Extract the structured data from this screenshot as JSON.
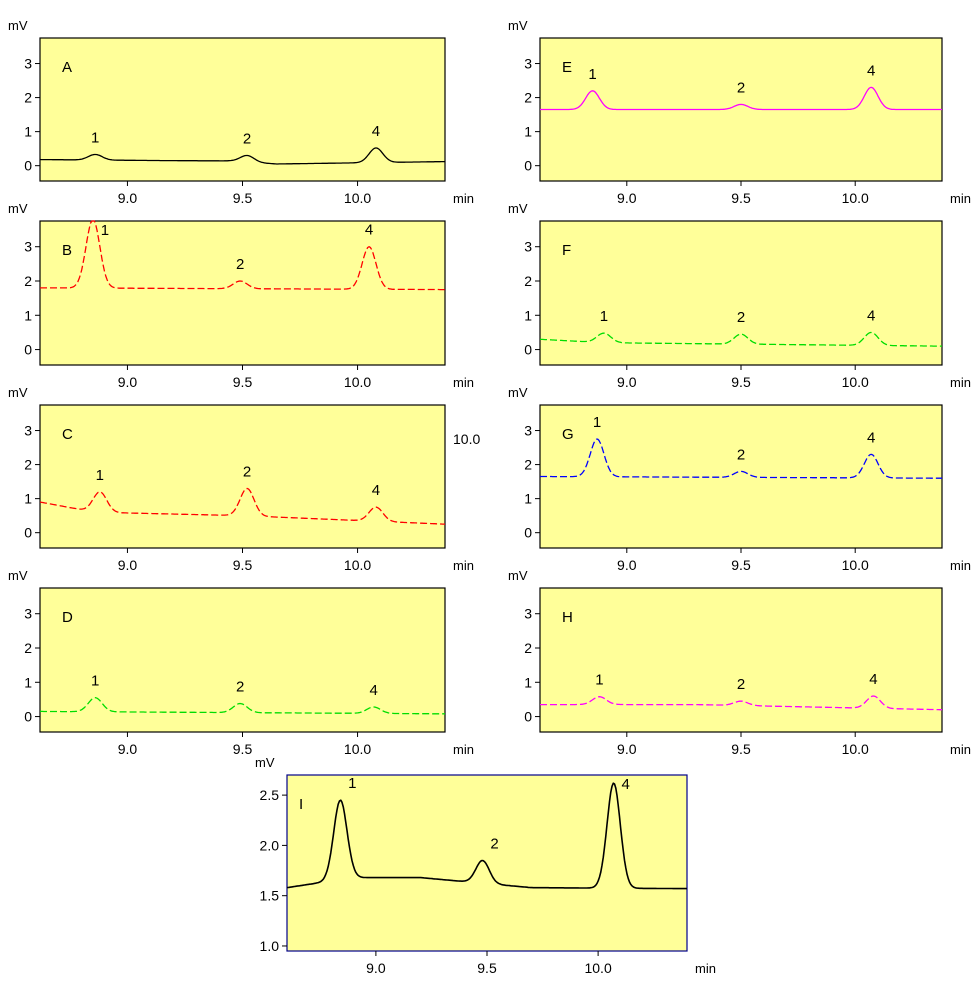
{
  "figure": {
    "background": "#ffffff",
    "panel_fill": "#ffff99"
  },
  "stray_labels": {
    "c_panel_right": "10.0"
  },
  "chart_data": [
    {
      "id": "A",
      "type": "line",
      "letter": "A",
      "ylabel": "mV",
      "xlabel": "min",
      "line_color": "#000000",
      "line_style": "solid",
      "border_color": "#000000",
      "xlim": [
        8.62,
        10.38
      ],
      "ylim": [
        -0.45,
        3.75
      ],
      "xticks": [
        9.0,
        9.5,
        10.0
      ],
      "xtick_labels": [
        "9.0",
        "9.5",
        "10.0"
      ],
      "yticks": [
        0,
        1,
        2,
        3
      ],
      "ytick_labels": [
        "0",
        "1",
        "2",
        "3"
      ],
      "baseline": [
        [
          8.62,
          0.18
        ],
        [
          9.15,
          0.15
        ],
        [
          9.45,
          0.14
        ],
        [
          9.65,
          0.05
        ],
        [
          10.38,
          0.12
        ]
      ],
      "peaks": [
        {
          "label": "1",
          "rt": 8.86,
          "height": 0.33
        },
        {
          "label": "2",
          "rt": 9.52,
          "height": 0.3
        },
        {
          "label": "4",
          "rt": 10.08,
          "height": 0.52
        }
      ]
    },
    {
      "id": "B",
      "type": "line",
      "letter": "B",
      "ylabel": "mV",
      "xlabel": "min",
      "line_color": "#ff0000",
      "line_style": "dashed",
      "border_color": "#000000",
      "xlim": [
        8.62,
        10.38
      ],
      "ylim": [
        -0.45,
        3.75
      ],
      "xticks": [
        9.0,
        9.5,
        10.0
      ],
      "xtick_labels": [
        "9.0",
        "9.5",
        "10.0"
      ],
      "yticks": [
        0,
        1,
        2,
        3
      ],
      "ytick_labels": [
        "0",
        "1",
        "2",
        "3"
      ],
      "baseline": [
        [
          8.62,
          1.8
        ],
        [
          10.38,
          1.75
        ]
      ],
      "peaks": [
        {
          "label": "1",
          "rt": 8.85,
          "height": 3.8
        },
        {
          "label": "2",
          "rt": 9.49,
          "height": 2.0
        },
        {
          "label": "4",
          "rt": 10.05,
          "height": 3.0
        }
      ]
    },
    {
      "id": "C",
      "type": "line",
      "letter": "C",
      "ylabel": "mV",
      "xlabel": "min",
      "line_color": "#ff0000",
      "line_style": "dashed",
      "border_color": "#000000",
      "xlim": [
        8.62,
        10.38
      ],
      "ylim": [
        -0.45,
        3.75
      ],
      "xticks": [
        9.0,
        9.5,
        10.0
      ],
      "xtick_labels": [
        "9.0",
        "9.5",
        "10.0"
      ],
      "yticks": [
        0,
        1,
        2,
        3
      ],
      "ytick_labels": [
        "0",
        "1",
        "2",
        "3"
      ],
      "baseline": [
        [
          8.62,
          0.9
        ],
        [
          8.86,
          0.6
        ],
        [
          9.5,
          0.5
        ],
        [
          10.38,
          0.25
        ]
      ],
      "peaks": [
        {
          "label": "1",
          "rt": 8.88,
          "height": 1.2
        },
        {
          "label": "2",
          "rt": 9.52,
          "height": 1.3
        },
        {
          "label": "4",
          "rt": 10.08,
          "height": 0.75
        }
      ]
    },
    {
      "id": "D",
      "type": "line",
      "letter": "D",
      "ylabel": "mV",
      "xlabel": "min",
      "line_color": "#00dd00",
      "line_style": "dashed",
      "border_color": "#000000",
      "xlim": [
        8.62,
        10.38
      ],
      "ylim": [
        -0.45,
        3.75
      ],
      "xticks": [
        9.0,
        9.5,
        10.0
      ],
      "xtick_labels": [
        "9.0",
        "9.5",
        "10.0"
      ],
      "yticks": [
        0,
        1,
        2,
        3
      ],
      "ytick_labels": [
        "0",
        "1",
        "2",
        "3"
      ],
      "baseline": [
        [
          8.62,
          0.15
        ],
        [
          10.38,
          0.08
        ]
      ],
      "peaks": [
        {
          "label": "1",
          "rt": 8.86,
          "height": 0.55
        },
        {
          "label": "2",
          "rt": 9.49,
          "height": 0.38
        },
        {
          "label": "4",
          "rt": 10.07,
          "height": 0.28
        }
      ]
    },
    {
      "id": "E",
      "type": "line",
      "letter": "E",
      "ylabel": "mV",
      "xlabel": "min",
      "line_color": "#ff00ff",
      "line_style": "solid",
      "border_color": "#000000",
      "xlim": [
        8.62,
        10.38
      ],
      "ylim": [
        -0.45,
        3.75
      ],
      "xticks": [
        9.0,
        9.5,
        10.0
      ],
      "xtick_labels": [
        "9.0",
        "9.5",
        "10.0"
      ],
      "yticks": [
        0,
        1,
        2,
        3
      ],
      "ytick_labels": [
        "0",
        "1",
        "2",
        "3"
      ],
      "baseline": [
        [
          8.62,
          1.65
        ],
        [
          10.38,
          1.65
        ]
      ],
      "peaks": [
        {
          "label": "1",
          "rt": 8.85,
          "height": 2.2
        },
        {
          "label": "2",
          "rt": 9.5,
          "height": 1.8
        },
        {
          "label": "4",
          "rt": 10.07,
          "height": 2.3
        }
      ]
    },
    {
      "id": "F",
      "type": "line",
      "letter": "F",
      "ylabel": "mV",
      "xlabel": "min",
      "line_color": "#00dd00",
      "line_style": "dashed",
      "border_color": "#000000",
      "xlim": [
        8.62,
        10.38
      ],
      "ylim": [
        -0.45,
        3.75
      ],
      "xticks": [
        9.0,
        9.5,
        10.0
      ],
      "xtick_labels": [
        "9.0",
        "9.5",
        "10.0"
      ],
      "yticks": [
        0,
        1,
        2,
        3
      ],
      "ytick_labels": [
        "0",
        "1",
        "2",
        "3"
      ],
      "baseline": [
        [
          8.62,
          0.3
        ],
        [
          8.9,
          0.2
        ],
        [
          10.38,
          0.1
        ]
      ],
      "peaks": [
        {
          "label": "1",
          "rt": 8.9,
          "height": 0.48
        },
        {
          "label": "2",
          "rt": 9.5,
          "height": 0.45
        },
        {
          "label": "4",
          "rt": 10.07,
          "height": 0.5
        }
      ]
    },
    {
      "id": "G",
      "type": "line",
      "letter": "G",
      "ylabel": "mV",
      "xlabel": "min",
      "line_color": "#0000ff",
      "line_style": "dashed",
      "border_color": "#000000",
      "xlim": [
        8.62,
        10.38
      ],
      "ylim": [
        -0.45,
        3.75
      ],
      "xticks": [
        9.0,
        9.5,
        10.0
      ],
      "xtick_labels": [
        "9.0",
        "9.5",
        "10.0"
      ],
      "yticks": [
        0,
        1,
        2,
        3
      ],
      "ytick_labels": [
        "0",
        "1",
        "2",
        "3"
      ],
      "baseline": [
        [
          8.62,
          1.65
        ],
        [
          10.38,
          1.6
        ]
      ],
      "peaks": [
        {
          "label": "1",
          "rt": 8.87,
          "height": 2.75
        },
        {
          "label": "2",
          "rt": 9.5,
          "height": 1.8
        },
        {
          "label": "4",
          "rt": 10.07,
          "height": 2.3
        }
      ]
    },
    {
      "id": "H",
      "type": "line",
      "letter": "H",
      "ylabel": "mV",
      "xlabel": "min",
      "line_color": "#ff00ff",
      "line_style": "dashed",
      "border_color": "#000000",
      "xlim": [
        8.62,
        10.38
      ],
      "ylim": [
        -0.45,
        3.75
      ],
      "xticks": [
        9.0,
        9.5,
        10.0
      ],
      "xtick_labels": [
        "9.0",
        "9.5",
        "10.0"
      ],
      "yticks": [
        0,
        1,
        2,
        3
      ],
      "ytick_labels": [
        "0",
        "1",
        "2",
        "3"
      ],
      "baseline": [
        [
          8.62,
          0.35
        ],
        [
          9.3,
          0.35
        ],
        [
          10.38,
          0.2
        ]
      ],
      "peaks": [
        {
          "label": "1",
          "rt": 8.88,
          "height": 0.58
        },
        {
          "label": "2",
          "rt": 9.5,
          "height": 0.45
        },
        {
          "label": "4",
          "rt": 10.08,
          "height": 0.6
        }
      ]
    },
    {
      "id": "I",
      "type": "line",
      "letter": "I",
      "ylabel": "mV",
      "xlabel": "min",
      "line_color": "#000000",
      "line_style": "solid",
      "border_color": "#00008b",
      "xlim": [
        8.6,
        10.4
      ],
      "ylim": [
        0.95,
        2.7
      ],
      "xticks": [
        9.0,
        9.5,
        10.0
      ],
      "xtick_labels": [
        "9.0",
        "9.5",
        "10.0"
      ],
      "yticks": [
        1.0,
        1.5,
        2.0,
        2.5
      ],
      "ytick_labels": [
        "1.0",
        "1.5",
        "2.0",
        "2.5"
      ],
      "baseline": [
        [
          8.6,
          1.58
        ],
        [
          8.9,
          1.68
        ],
        [
          9.2,
          1.68
        ],
        [
          9.7,
          1.58
        ],
        [
          10.4,
          1.57
        ]
      ],
      "peaks": [
        {
          "label": "1",
          "rt": 8.84,
          "height": 2.45
        },
        {
          "label": "2",
          "rt": 9.48,
          "height": 1.85
        },
        {
          "label": "4",
          "rt": 10.07,
          "height": 2.62
        }
      ]
    }
  ]
}
